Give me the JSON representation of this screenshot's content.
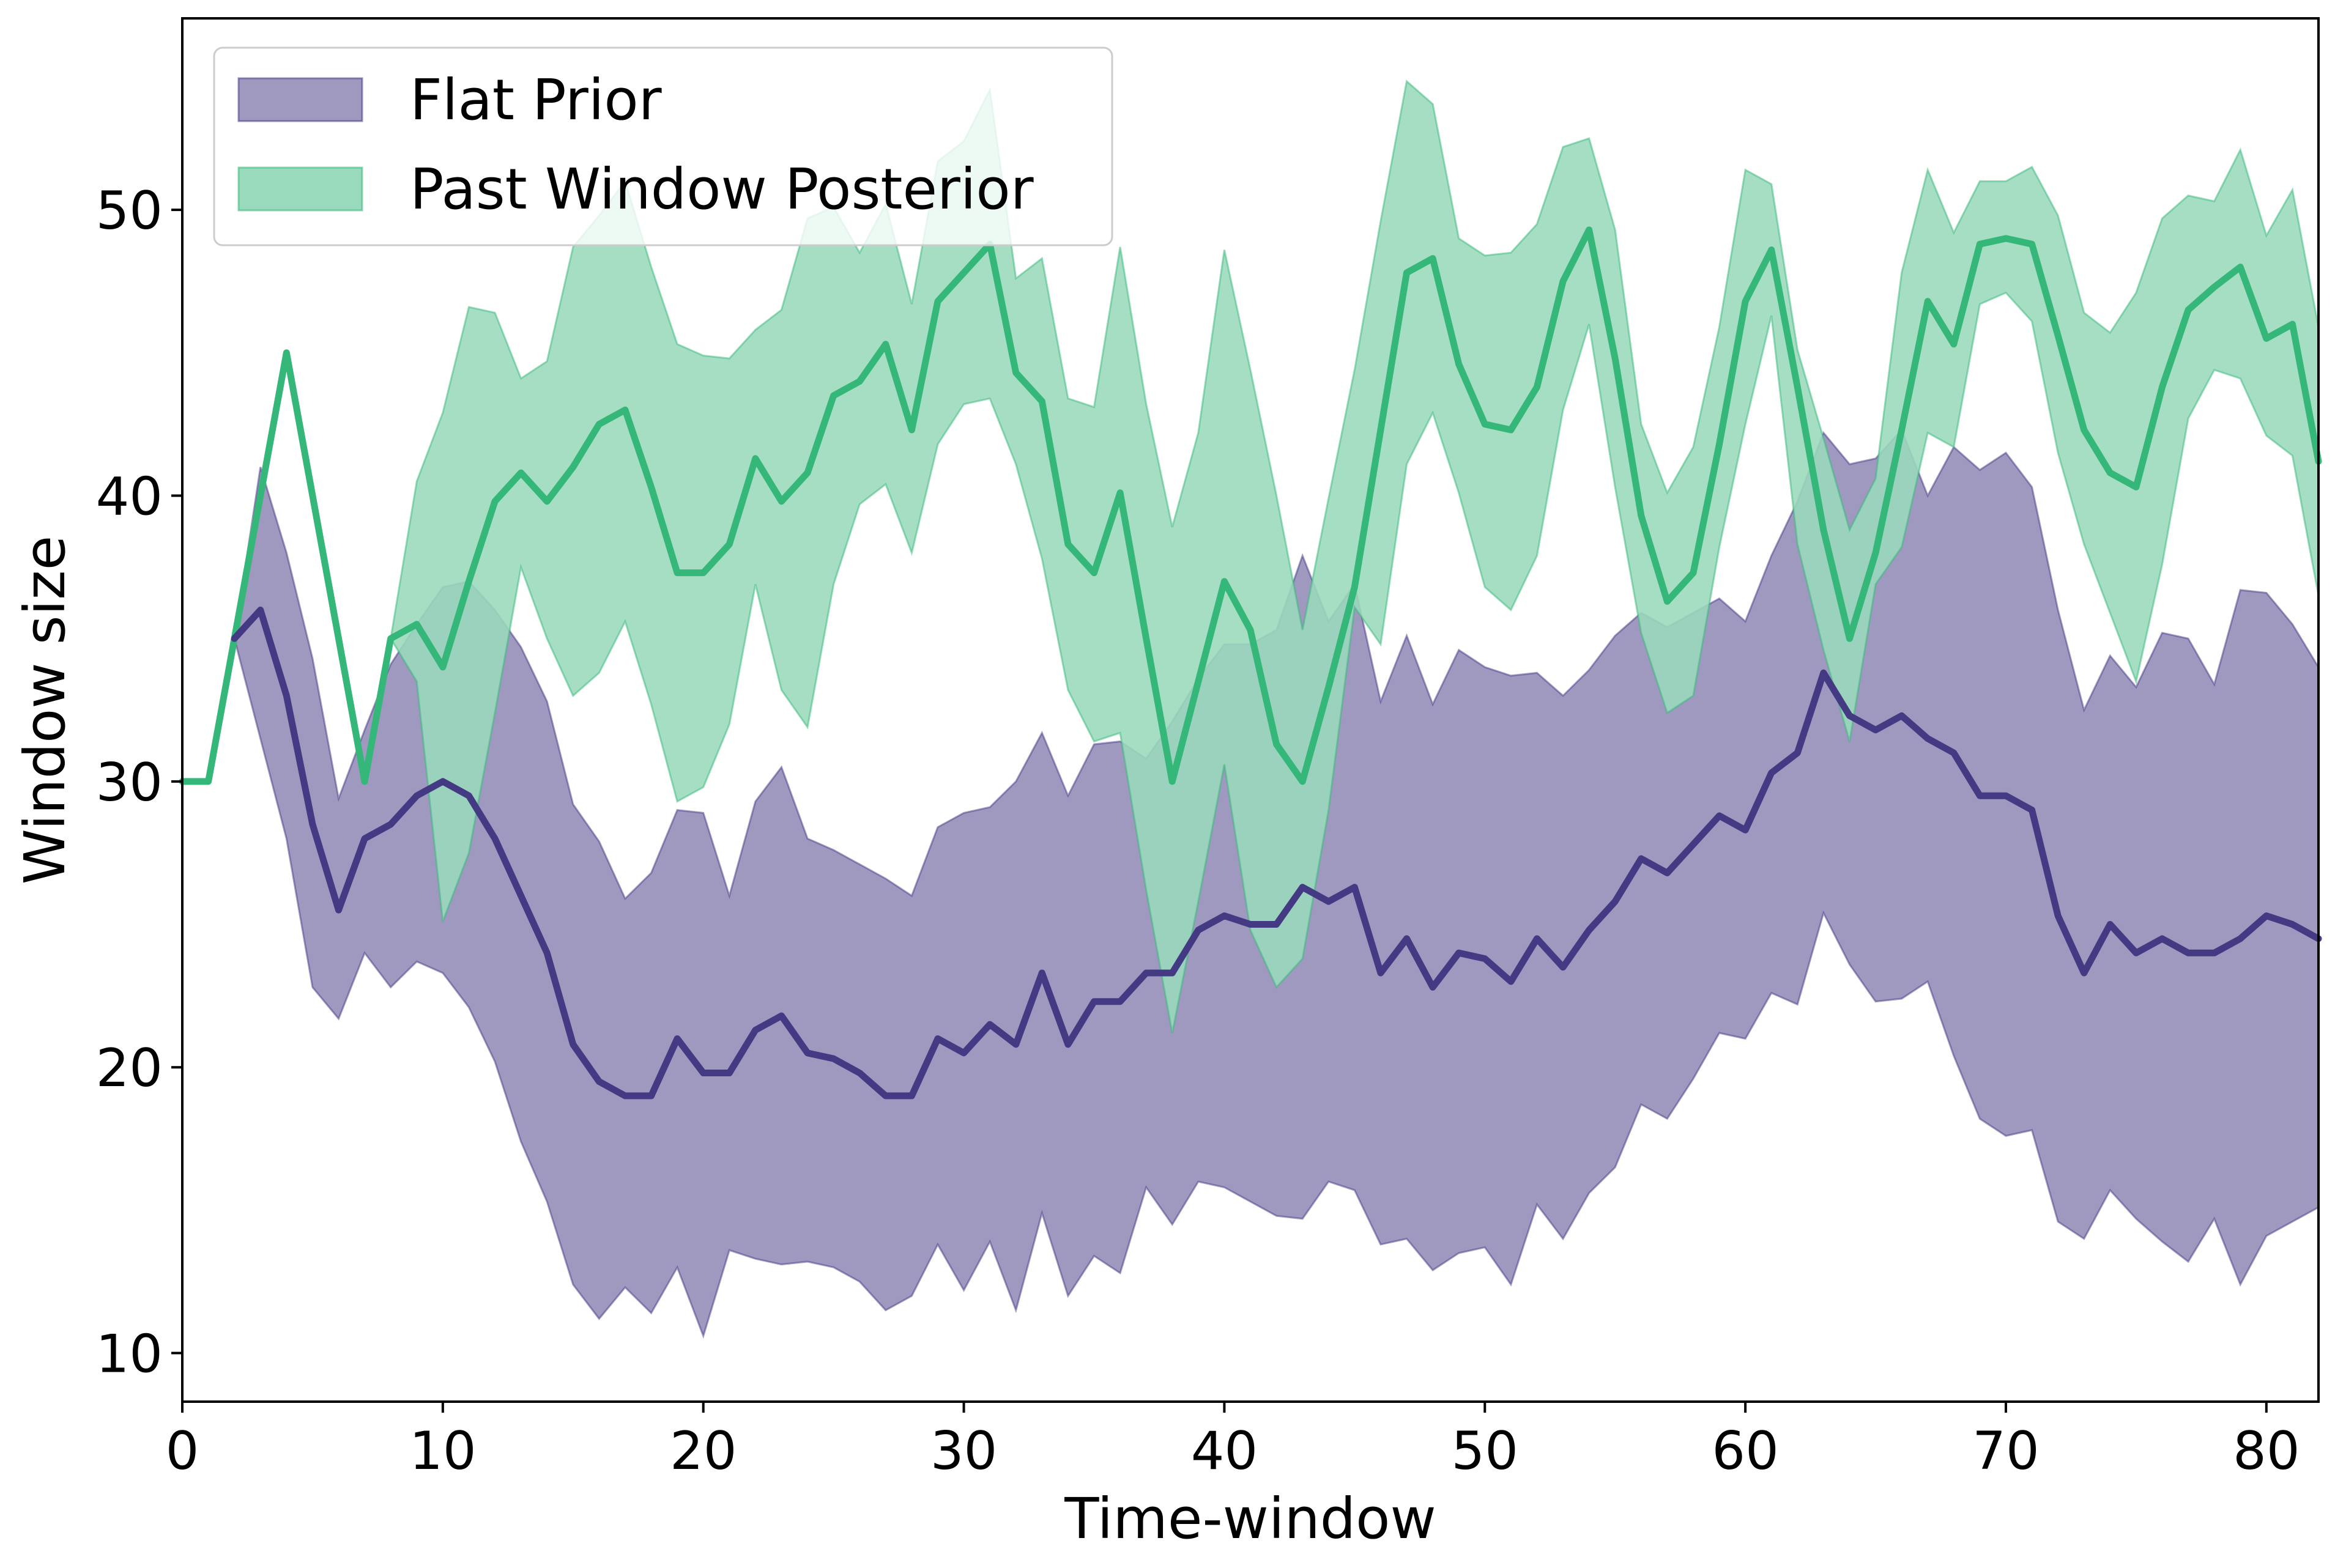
{
  "chart_data": {
    "type": "line",
    "xlabel": "Time-window",
    "ylabel": "Window size",
    "xlim": [
      0,
      82
    ],
    "ylim": [
      8.3,
      56.7
    ],
    "xticks": [
      0,
      10,
      20,
      30,
      40,
      50,
      60,
      70,
      80
    ],
    "yticks": [
      10,
      20,
      30,
      40,
      50
    ],
    "grid": false,
    "legend_position": "top-left",
    "series": [
      {
        "name": "Flat Prior",
        "color": "#443983",
        "band_color": "#9f99c0",
        "line_start": 2,
        "band_start": 2,
        "mean": [
          30,
          30,
          35,
          36,
          33,
          28.5,
          25.5,
          28,
          28.5,
          29.5,
          30,
          29.5,
          28,
          26,
          24,
          20.8,
          19.5,
          19,
          19,
          21,
          19.8,
          19.8,
          21.3,
          21.8,
          20.5,
          20.3,
          19.8,
          19,
          19,
          21,
          20.5,
          21.5,
          20.8,
          23.3,
          20.8,
          22.3,
          22.3,
          23.3,
          23.3,
          24.8,
          25.3,
          25,
          25,
          26.3,
          25.8,
          26.3,
          23.3,
          24.5,
          22.8,
          24,
          23.8,
          23,
          24.5,
          23.5,
          24.8,
          25.8,
          27.3,
          26.8,
          27.8,
          28.8,
          28.3,
          30.3,
          31,
          33.8,
          32.3,
          31.8,
          32.3,
          31.5,
          31,
          29.5,
          29.5,
          29,
          25.3,
          23.3,
          25,
          24,
          24.5,
          24,
          24,
          24.5,
          25.3,
          25,
          24.5
        ],
        "lower": [
          30,
          30,
          35,
          31.5,
          28,
          22.8,
          21.7,
          24,
          22.8,
          23.7,
          23.3,
          22.1,
          20.2,
          17.4,
          15.3,
          12.4,
          11.2,
          12.3,
          11.4,
          13,
          10.6,
          13.6,
          13.3,
          13.1,
          13.2,
          13,
          12.5,
          11.5,
          12,
          13.8,
          12.2,
          13.9,
          11.5,
          14.9,
          12,
          13.4,
          12.8,
          15.8,
          14.5,
          16,
          15.8,
          15.3,
          14.8,
          14.7,
          16,
          15.7,
          13.8,
          14,
          12.9,
          13.5,
          13.7,
          12.4,
          15.2,
          14,
          15.6,
          16.5,
          18.7,
          18.2,
          19.6,
          21.2,
          21,
          22.6,
          22.2,
          25.4,
          23.6,
          22.3,
          22.4,
          23,
          20.4,
          18.2,
          17.6,
          17.8,
          14.6,
          14,
          15.7,
          14.7,
          13.9,
          13.2,
          14.7,
          12.4,
          14.1,
          14.6,
          15.1
        ],
        "upper": [
          30,
          30,
          35,
          41,
          38,
          34.3,
          29.4,
          31.8,
          34.1,
          35.5,
          36.8,
          37,
          36,
          34.7,
          32.8,
          29.2,
          27.9,
          25.9,
          26.8,
          29,
          28.9,
          26,
          29.3,
          30.5,
          28,
          27.6,
          27.1,
          26.6,
          26,
          28.4,
          28.9,
          29.1,
          30,
          31.7,
          29.5,
          31.3,
          31.4,
          30.8,
          32.1,
          33.6,
          34.8,
          34.8,
          35.3,
          37.9,
          35.6,
          36.9,
          32.8,
          35.1,
          32.7,
          34.6,
          34,
          33.7,
          33.8,
          33,
          33.9,
          35.1,
          35.9,
          35.4,
          35.9,
          36.4,
          35.6,
          37.9,
          39.8,
          42.2,
          41.1,
          41.3,
          42.3,
          40,
          41.7,
          40.9,
          41.5,
          40.3,
          36,
          32.5,
          34.4,
          33.3,
          35.2,
          35,
          33.4,
          36.7,
          36.6,
          35.5,
          34
        ]
      },
      {
        "name": "Past Window Posterior",
        "color": "#35b779",
        "band_color": "#9adabc",
        "line_start": 0,
        "band_start": 8,
        "mean": [
          30,
          30,
          35,
          40,
          45,
          40,
          35,
          30,
          35,
          35.5,
          34,
          37,
          39.8,
          40.8,
          39.8,
          41,
          42.5,
          43,
          40.3,
          37.3,
          37.3,
          38.3,
          41.3,
          39.8,
          40.8,
          43.5,
          44,
          45.3,
          42.3,
          46.8,
          47.8,
          48.8,
          44.3,
          43.3,
          38.3,
          37.3,
          40.1,
          35,
          30,
          33.5,
          37,
          35.3,
          31.3,
          30,
          33.3,
          36.8,
          42.3,
          47.8,
          48.3,
          44.6,
          42.5,
          42.3,
          43.8,
          47.5,
          49.3,
          44.8,
          39.3,
          36.3,
          37.3,
          41.8,
          46.8,
          48.6,
          43.8,
          38.8,
          35,
          38,
          42.3,
          46.8,
          45.3,
          48.8,
          49,
          48.8,
          45.6,
          42.3,
          40.8,
          40.3,
          43.8,
          46.5,
          47.3,
          48,
          45.5,
          46,
          41.2
        ],
        "lower": [
          30,
          30,
          35,
          40,
          45,
          40,
          35,
          30,
          35,
          33.5,
          25.1,
          27.5,
          32.4,
          37.5,
          35,
          33,
          33.8,
          35.6,
          32.7,
          29.3,
          29.8,
          32,
          36.9,
          33.2,
          31.9,
          36.9,
          39.7,
          40.4,
          38,
          41.8,
          43.2,
          43.4,
          41.1,
          37.8,
          33.2,
          31.4,
          31.7,
          26.2,
          21.2,
          25.8,
          30.6,
          24.8,
          22.8,
          23.8,
          29,
          36.1,
          34.8,
          41.1,
          42.9,
          40.1,
          36.8,
          36,
          37.9,
          43,
          46,
          40.3,
          35.2,
          32.4,
          33,
          38.2,
          42.5,
          46.3,
          38.3,
          34.6,
          31.4,
          36.9,
          38.2,
          42.2,
          41.7,
          46.7,
          47.1,
          46.1,
          41.5,
          38.3,
          35.9,
          33.5,
          37.6,
          42.7,
          44.4,
          44.1,
          42.1,
          41.4,
          36.5
        ],
        "upper": [
          30,
          30,
          35,
          40,
          45,
          40,
          35,
          30,
          35,
          40.5,
          42.9,
          46.6,
          46.4,
          44.1,
          44.7,
          48.7,
          49.8,
          51,
          48,
          45.3,
          44.9,
          44.8,
          45.8,
          46.5,
          49.7,
          50.1,
          48.5,
          50.2,
          46.7,
          51.7,
          52.4,
          54.2,
          47.6,
          48.3,
          43.4,
          43.1,
          48.7,
          43.2,
          38.9,
          42.2,
          48.6,
          44.4,
          40,
          35.3,
          39.9,
          44.4,
          49.6,
          54.5,
          53.7,
          49,
          48.4,
          48.5,
          49.5,
          52.2,
          52.5,
          49.3,
          42.5,
          40.1,
          41.7,
          45.9,
          51.4,
          50.9,
          45.1,
          42,
          38.8,
          40.6,
          47.8,
          51.4,
          49.2,
          51,
          51,
          51.5,
          49.8,
          46.4,
          45.7,
          47.1,
          49.7,
          50.5,
          50.3,
          52.1,
          49.1,
          50.7,
          45.9
        ]
      }
    ]
  }
}
